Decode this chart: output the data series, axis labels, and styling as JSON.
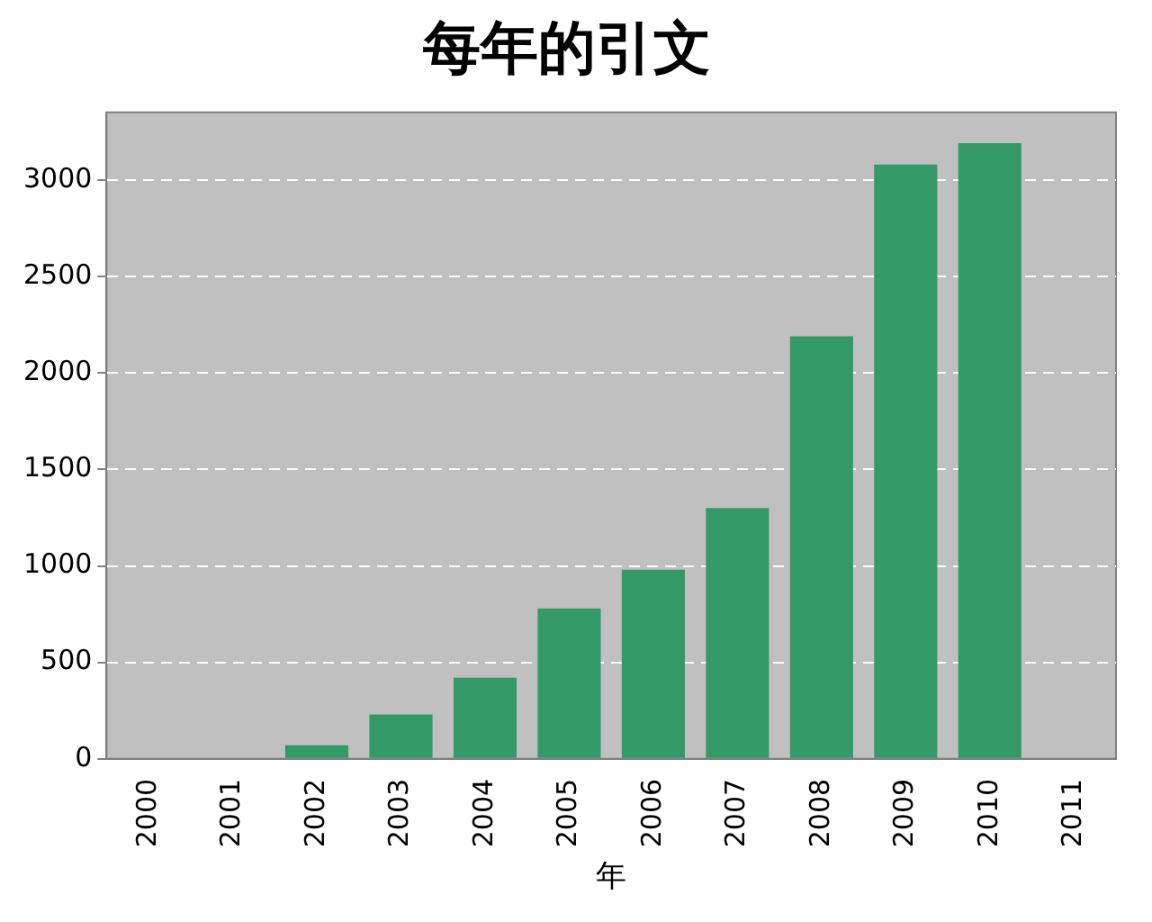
{
  "chart_data": {
    "type": "bar",
    "title": "每年的引文",
    "xlabel": "年",
    "categories": [
      "2000",
      "2001",
      "2002",
      "2003",
      "2004",
      "2005",
      "2006",
      "2007",
      "2008",
      "2009",
      "2010",
      "2011"
    ],
    "values": [
      0,
      0,
      70,
      230,
      420,
      780,
      980,
      1300,
      2190,
      3080,
      3190,
      0
    ],
    "color": "#339966",
    "ylim": [
      0,
      3350
    ],
    "yticks": [
      0,
      500,
      1000,
      1500,
      2000,
      2500,
      3000
    ],
    "grid": "y"
  }
}
